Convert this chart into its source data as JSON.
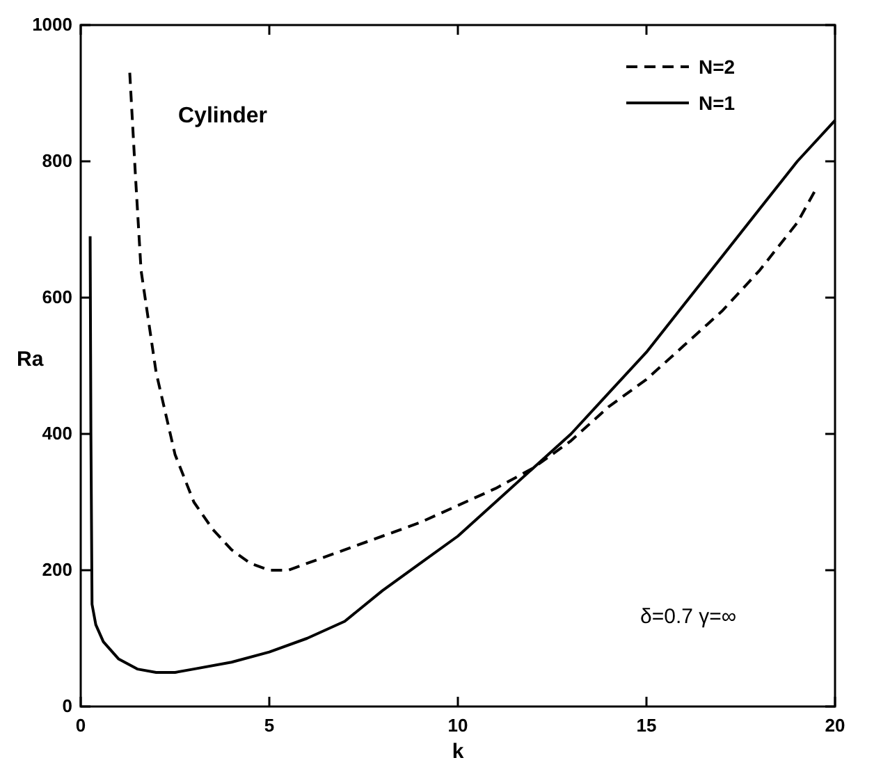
{
  "chart_data": {
    "type": "line",
    "xlabel": "k",
    "ylabel": "Ra",
    "xlim": [
      0,
      20
    ],
    "ylim": [
      0,
      1000
    ],
    "xticks": [
      0,
      5,
      10,
      15,
      20
    ],
    "yticks": [
      0,
      200,
      400,
      600,
      800,
      1000
    ],
    "grid": false,
    "legend": "top right",
    "annotations": [
      "Cylinder",
      "δ=0.7  γ=∞"
    ],
    "series": [
      {
        "name": "N=2",
        "color": "#000000",
        "line_style": "dashed",
        "x": [
          1.3,
          1.45,
          1.6,
          2,
          2.5,
          3,
          3.5,
          4,
          4.5,
          5,
          5.5,
          6,
          7,
          8,
          9,
          10,
          11,
          12,
          13,
          14,
          15,
          16,
          17,
          18,
          19,
          19.5
        ],
        "values": [
          930,
          780,
          640,
          490,
          370,
          300,
          260,
          230,
          210,
          200,
          200,
          210,
          230,
          250,
          270,
          295,
          320,
          350,
          390,
          440,
          480,
          530,
          580,
          640,
          710,
          760
        ]
      },
      {
        "name": "N=1",
        "color": "#000000",
        "line_style": "solid",
        "x": [
          0.25,
          0.27,
          0.3,
          0.4,
          0.6,
          1,
          1.5,
          2,
          2.5,
          3,
          4,
          5,
          6,
          7,
          8,
          9,
          10,
          11,
          12,
          13,
          14,
          15,
          16,
          17,
          18,
          19,
          20
        ],
        "values": [
          690,
          400,
          150,
          120,
          95,
          70,
          55,
          50,
          50,
          55,
          65,
          80,
          100,
          125,
          170,
          210,
          250,
          300,
          350,
          400,
          460,
          520,
          590,
          660,
          730,
          800,
          860
        ]
      }
    ]
  }
}
